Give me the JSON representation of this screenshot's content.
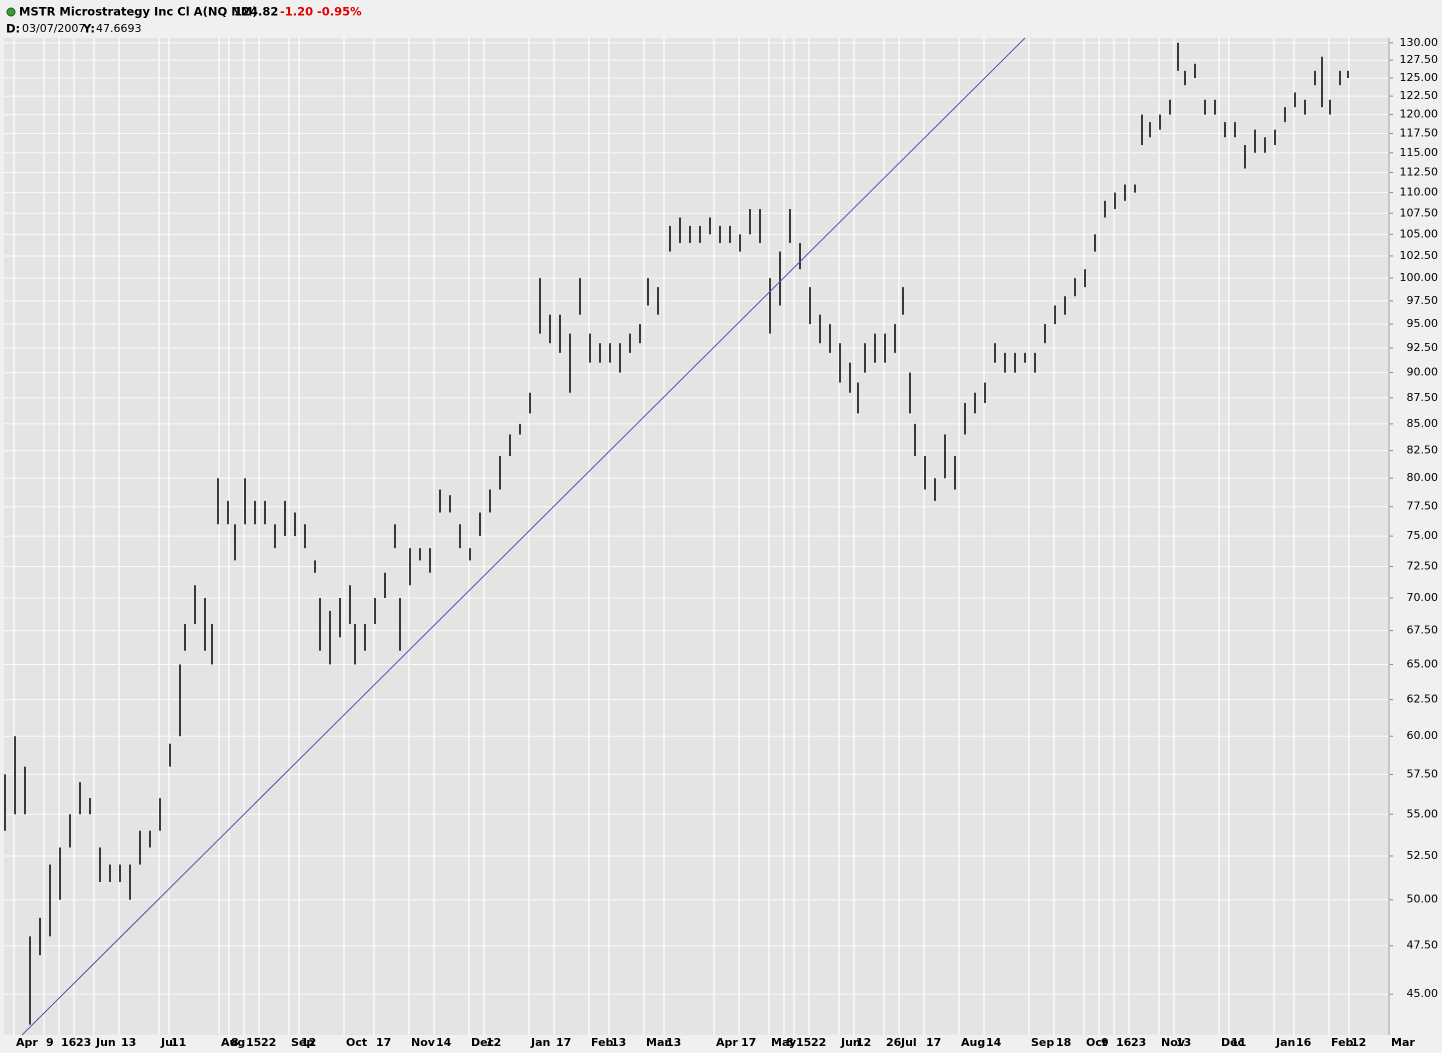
{
  "header": {
    "symbol": "MSTR Microstrategy Inc Cl A(NQ NM)",
    "last": "124.82",
    "change": "-1.20",
    "change_pct": "-0.95%",
    "d_label": "D:",
    "date": "03/07/2007",
    "y_label": "Y:",
    "y_value": "47.6693"
  },
  "chart_data": {
    "type": "ohlc",
    "log_scale": true,
    "grid": true,
    "color": "#000000",
    "x": [
      0.2,
      2.2,
      4.2,
      5.2,
      7.2,
      9.2,
      11.2,
      13.2,
      15.2,
      17.2,
      19.2,
      21.2,
      23.2,
      25.2,
      27.2,
      29.2,
      31.2,
      33.2,
      35.2,
      36.2,
      38.2,
      40.2,
      41.6,
      42.8,
      44.8,
      46.2,
      48.2,
      50.2,
      52.2,
      54.2,
      56.2,
      58.2,
      60.2,
      62.2,
      63.2,
      65.2,
      67.2,
      69.2,
      70.2,
      72.2,
      74.2,
      76.2,
      78.2,
      79.2,
      81.2,
      83.2,
      85.2,
      87.2,
      89.2,
      91.2,
      93.2,
      95.2,
      97.2,
      99.2,
      101.2,
      103.2,
      105.2,
      107.2,
      109.2,
      111.2,
      113.2,
      115.2,
      117.2,
      119.2,
      121.2,
      123.2,
      125.2,
      127.2,
      128.8,
      130.8,
      133.2,
      135.2,
      137.2,
      139.2,
      141.2,
      143.2,
      145.2,
      147.2,
      149.2,
      151.2,
      153.2,
      155.2,
      157.2,
      159.2,
      161.2,
      163.2,
      165.2,
      167.2,
      169.2,
      170.8,
      172.2,
      174.2,
      176.2,
      178.2,
      179.8,
      181.2,
      182.2,
      184.2,
      186.2,
      188.2,
      190.2,
      192.2,
      194.2,
      196.2,
      198.2,
      200.2,
      202.2,
      204.2,
      206.2,
      208.2,
      210.2,
      212.2,
      214.2,
      216.2,
      218.2,
      220.2,
      222.2,
      224.2,
      226.2,
      227.6,
      229.2,
      231.2,
      233.2,
      234.8,
      236.2,
      238.2,
      240.2,
      242.2,
      244.2,
      246.2,
      248.2,
      250.2,
      252.2,
      254.2,
      256.2,
      258.2,
      260.2,
      262.2,
      263.6,
      265.2,
      267.2,
      268.8
    ],
    "high": [
      57.5,
      60,
      58,
      48,
      49,
      52,
      53,
      55,
      57,
      56,
      53,
      52,
      52,
      52,
      54,
      54,
      56,
      59.5,
      65,
      68,
      71,
      70,
      68,
      80,
      78,
      76,
      80,
      78,
      78,
      76,
      78,
      77,
      76,
      73,
      70,
      69,
      70,
      71,
      68,
      68,
      70,
      72,
      76,
      70,
      74,
      74,
      74,
      79,
      78.5,
      76,
      74,
      77,
      79,
      82,
      84,
      85,
      88,
      100,
      96,
      96,
      94,
      100,
      94,
      93,
      93,
      93,
      94,
      95,
      100,
      99,
      106,
      107,
      106,
      106,
      107,
      106,
      106,
      105,
      108,
      108,
      100,
      103,
      108,
      104,
      99,
      96,
      95,
      93,
      91,
      89,
      93,
      94,
      94,
      95,
      99,
      90,
      85,
      82,
      80,
      84,
      82,
      87,
      88,
      89,
      93,
      92,
      92,
      92,
      92,
      95,
      97,
      98,
      100,
      101,
      105,
      109,
      110,
      111,
      111,
      120,
      119,
      120,
      122,
      130,
      126,
      127,
      122,
      122,
      119,
      119,
      116,
      118,
      117,
      118,
      121,
      123,
      122,
      126,
      128,
      122,
      126,
      126
    ],
    "low": [
      54,
      55,
      55,
      43.5,
      47,
      48,
      50,
      53,
      55,
      55,
      51,
      51,
      51,
      50,
      52,
      53,
      54,
      58,
      60,
      66,
      68,
      66,
      65,
      76,
      76,
      73,
      76,
      76,
      76,
      74,
      75,
      75,
      74,
      72,
      66,
      65,
      67,
      68,
      65,
      66,
      68,
      70,
      74,
      66,
      71,
      73,
      72,
      77,
      77,
      74,
      73,
      75,
      77,
      79,
      82,
      84,
      86,
      94,
      93,
      92,
      88,
      96,
      91,
      91,
      91,
      90,
      92,
      93,
      97,
      96,
      103,
      104,
      104,
      104,
      105,
      104,
      104,
      103,
      105,
      104,
      94,
      97,
      104,
      101,
      95,
      93,
      92,
      89,
      88,
      86,
      90,
      91,
      91,
      92,
      96,
      86,
      82,
      79,
      78,
      80,
      79,
      84,
      86,
      87,
      91,
      90,
      90,
      91,
      90,
      93,
      95,
      96,
      98,
      99,
      103,
      107,
      108,
      109,
      110,
      116,
      117,
      118,
      120,
      126,
      124,
      125,
      120,
      120,
      117,
      117,
      113,
      115,
      115,
      116,
      119,
      121,
      120,
      124,
      121,
      120,
      124,
      125
    ],
    "trendline": {
      "x": [
        3.6,
        204.2
      ],
      "y": [
        43,
        130.7
      ]
    },
    "xlim": [
      0,
      277
    ],
    "ylim": [
      43,
      130.7
    ],
    "yticks": [
      {
        "value": 45,
        "label": "45.00"
      },
      {
        "value": 47.5,
        "label": "47.50"
      },
      {
        "value": 50,
        "label": "50.00"
      },
      {
        "value": 52.5,
        "label": "52.50"
      },
      {
        "value": 55,
        "label": "55.00"
      },
      {
        "value": 57.5,
        "label": "57.50"
      },
      {
        "value": 60,
        "label": "60.00"
      },
      {
        "value": 62.5,
        "label": "62.50"
      },
      {
        "value": 65,
        "label": "65.00"
      },
      {
        "value": 67.5,
        "label": "67.50"
      },
      {
        "value": 70,
        "label": "70.00"
      },
      {
        "value": 72.5,
        "label": "72.50"
      },
      {
        "value": 75,
        "label": "75.00"
      },
      {
        "value": 77.5,
        "label": "77.50"
      },
      {
        "value": 80,
        "label": "80.00"
      },
      {
        "value": 82.5,
        "label": "82.50"
      },
      {
        "value": 85,
        "label": "85.00"
      },
      {
        "value": 87.5,
        "label": "87.50"
      },
      {
        "value": 90,
        "label": "90.00"
      },
      {
        "value": 92.5,
        "label": "92.50"
      },
      {
        "value": 95,
        "label": "95.00"
      },
      {
        "value": 97.5,
        "label": "97.50"
      },
      {
        "value": 100,
        "label": "100.00"
      },
      {
        "value": 102.5,
        "label": "102.50"
      },
      {
        "value": 105,
        "label": "105.00"
      },
      {
        "value": 107.5,
        "label": "107.50"
      },
      {
        "value": 110,
        "label": "110.00"
      },
      {
        "value": 112.5,
        "label": "112.50"
      },
      {
        "value": 115,
        "label": "115.00"
      },
      {
        "value": 117.5,
        "label": "117.50"
      },
      {
        "value": 120,
        "label": "120.00"
      },
      {
        "value": 122.5,
        "label": "122.50"
      },
      {
        "value": 125,
        "label": "125.00"
      },
      {
        "value": 127.5,
        "label": "127.50"
      },
      {
        "value": 130,
        "label": "130.00"
      }
    ],
    "xticks": [
      {
        "value": 2,
        "label": "Apr"
      },
      {
        "value": 8,
        "label": "9"
      },
      {
        "value": 11,
        "label": "16"
      },
      {
        "value": 14,
        "label": "23"
      },
      {
        "value": 18,
        "label": "Jun"
      },
      {
        "value": 23,
        "label": "13"
      },
      {
        "value": 31,
        "label": "Jul"
      },
      {
        "value": 33,
        "label": "11"
      },
      {
        "value": 43,
        "label": "Aug"
      },
      {
        "value": 45,
        "label": "8"
      },
      {
        "value": 48,
        "label": "15"
      },
      {
        "value": 51,
        "label": "22"
      },
      {
        "value": 57,
        "label": "Sep"
      },
      {
        "value": 59,
        "label": "12"
      },
      {
        "value": 68,
        "label": "Oct"
      },
      {
        "value": 74,
        "label": "17"
      },
      {
        "value": 81,
        "label": "Nov"
      },
      {
        "value": 86,
        "label": "14"
      },
      {
        "value": 93,
        "label": "Dec"
      },
      {
        "value": 96,
        "label": "12"
      },
      {
        "value": 105,
        "label": "Jan"
      },
      {
        "value": 110,
        "label": "17"
      },
      {
        "value": 117,
        "label": "Feb"
      },
      {
        "value": 121,
        "label": "13"
      },
      {
        "value": 128,
        "label": "Mar"
      },
      {
        "value": 132,
        "label": "13"
      },
      {
        "value": 142,
        "label": "Apr"
      },
      {
        "value": 147,
        "label": "17"
      },
      {
        "value": 153,
        "label": "May"
      },
      {
        "value": 156,
        "label": "8"
      },
      {
        "value": 158,
        "label": "15"
      },
      {
        "value": 161,
        "label": "22"
      },
      {
        "value": 167,
        "label": "Jun"
      },
      {
        "value": 170,
        "label": "12"
      },
      {
        "value": 176,
        "label": "26"
      },
      {
        "value": 179,
        "label": "Jul"
      },
      {
        "value": 184,
        "label": "17"
      },
      {
        "value": 191,
        "label": "Aug"
      },
      {
        "value": 196,
        "label": "14"
      },
      {
        "value": 205,
        "label": "Sep"
      },
      {
        "value": 210,
        "label": "18"
      },
      {
        "value": 216,
        "label": "Oct"
      },
      {
        "value": 219,
        "label": "9"
      },
      {
        "value": 222,
        "label": "16"
      },
      {
        "value": 225,
        "label": "23"
      },
      {
        "value": 231,
        "label": "Nov"
      },
      {
        "value": 234,
        "label": "13"
      },
      {
        "value": 243,
        "label": "Dec"
      },
      {
        "value": 245,
        "label": "11"
      },
      {
        "value": 254,
        "label": "Jan"
      },
      {
        "value": 258,
        "label": "16"
      },
      {
        "value": 265,
        "label": "Feb"
      },
      {
        "value": 269,
        "label": "12"
      },
      {
        "value": 277,
        "label": "Mar"
      }
    ]
  }
}
